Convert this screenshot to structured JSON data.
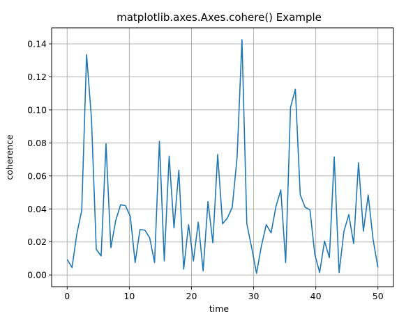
{
  "chart_data": {
    "type": "line",
    "title": "matplotlib.axes.Axes.cohere() Example",
    "xlabel": "time",
    "ylabel": "coherence",
    "xlim": [
      -2.5,
      52.5
    ],
    "ylim": [
      -0.0071,
      0.1497
    ],
    "xticks": [
      0,
      10,
      20,
      30,
      40,
      50
    ],
    "xtick_labels": [
      "0",
      "10",
      "20",
      "30",
      "40",
      "50"
    ],
    "yticks": [
      0.0,
      0.02,
      0.04,
      0.06,
      0.08,
      0.1,
      0.12,
      0.14
    ],
    "ytick_labels": [
      "0.00",
      "0.02",
      "0.04",
      "0.06",
      "0.08",
      "0.10",
      "0.12",
      "0.14"
    ],
    "grid": true,
    "color": "#1f77b4",
    "series": [
      {
        "x": [
          0,
          0.78125,
          1.5625,
          2.34375,
          3.125,
          3.90625,
          4.6875,
          5.46875,
          6.25,
          7.03125,
          7.8125,
          8.59375,
          9.375,
          10.15625,
          10.9375,
          11.71875,
          12.5,
          13.28125,
          14.0625,
          14.84375,
          15.625,
          16.40625,
          17.1875,
          17.96875,
          18.75,
          19.53125,
          20.3125,
          21.09375,
          21.875,
          22.65625,
          23.4375,
          24.21875,
          25.0,
          25.78125,
          26.5625,
          27.34375,
          28.125,
          28.90625,
          29.6875,
          30.46875,
          31.25,
          32.03125,
          32.8125,
          33.59375,
          34.375,
          35.15625,
          35.9375,
          36.71875,
          37.5,
          38.28125,
          39.0625,
          39.84375,
          40.625,
          41.40625,
          42.1875,
          42.96875,
          43.75,
          44.53125,
          45.3125,
          46.09375,
          46.875,
          47.65625,
          48.4375,
          49.21875,
          50.0
        ],
        "values": [
          0.0095,
          0.0045,
          0.025,
          0.039,
          0.1335,
          0.095,
          0.0155,
          0.0115,
          0.0795,
          0.0165,
          0.033,
          0.0425,
          0.042,
          0.0355,
          0.0075,
          0.0275,
          0.0272,
          0.0225,
          0.0075,
          0.081,
          0.0085,
          0.072,
          0.0285,
          0.0635,
          0.0035,
          0.0305,
          0.0085,
          0.032,
          0.0025,
          0.0445,
          0.0195,
          0.073,
          0.031,
          0.0345,
          0.041,
          0.0715,
          0.1425,
          0.031,
          0.0165,
          0.001,
          0.0175,
          0.0305,
          0.0255,
          0.0415,
          0.0515,
          0.0075,
          0.1015,
          0.1125,
          0.0485,
          0.041,
          0.0395,
          0.0125,
          0.0015,
          0.0205,
          0.0105,
          0.0715,
          0.0015,
          0.0265,
          0.0365,
          0.019,
          0.068,
          0.0265,
          0.0485,
          0.0215,
          0.0045
        ]
      }
    ]
  }
}
